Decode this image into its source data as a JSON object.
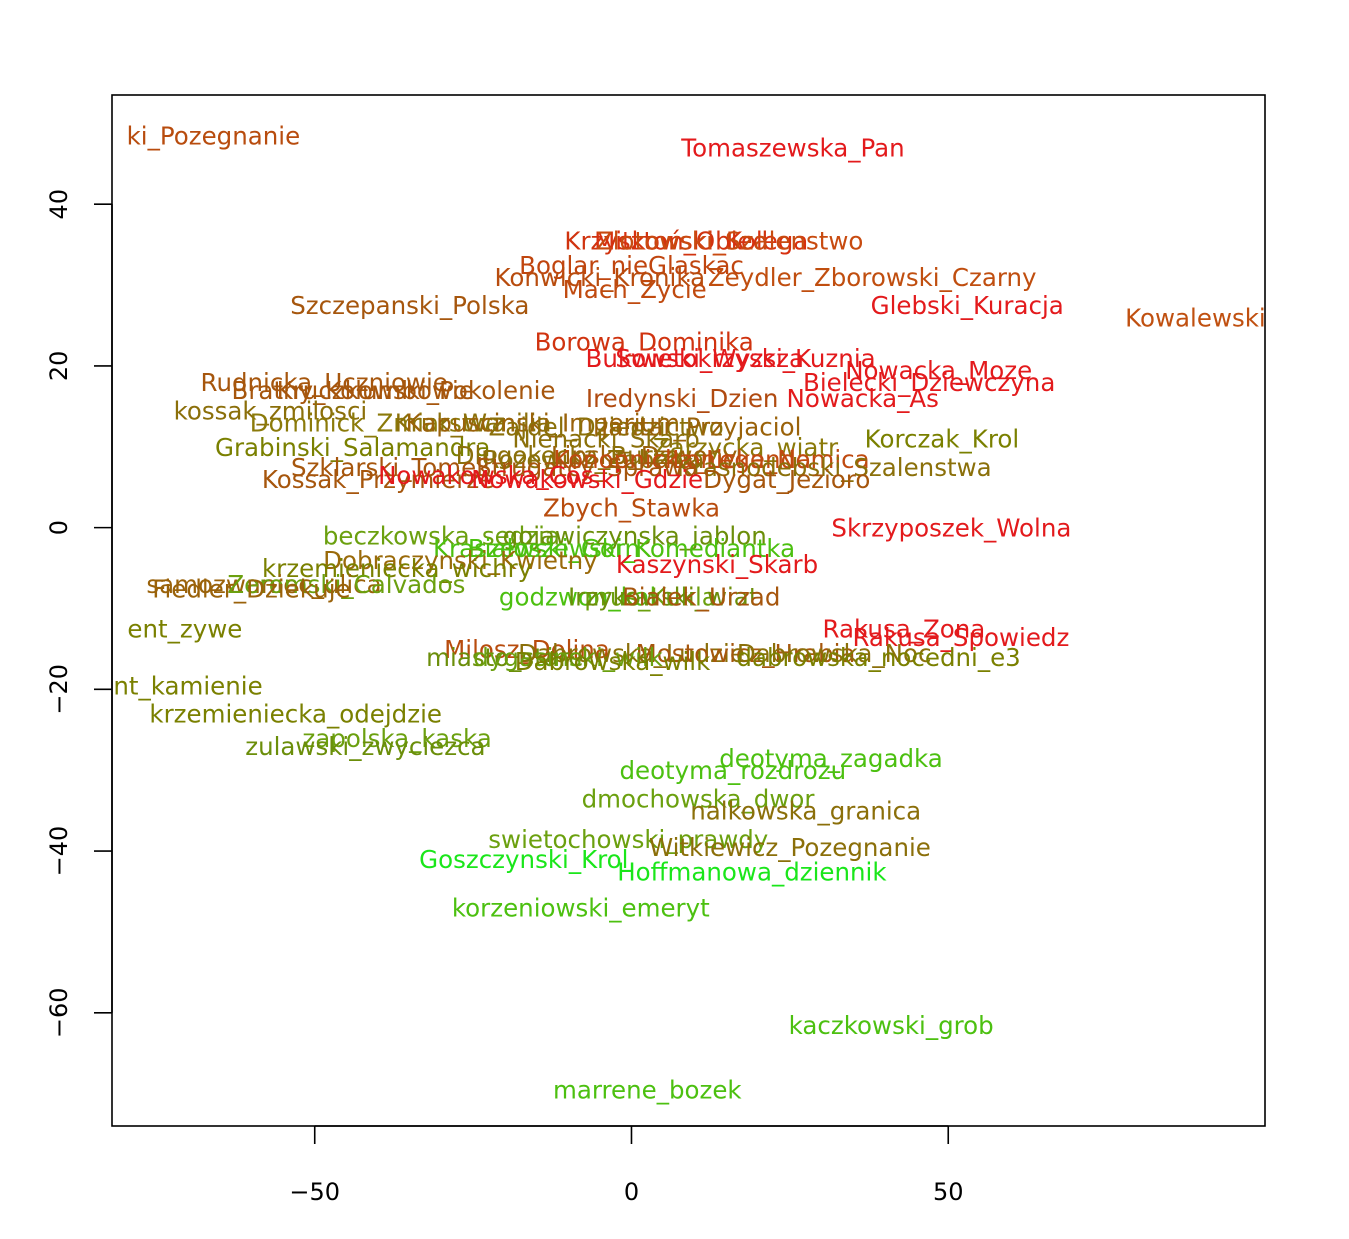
{
  "chart_data": {
    "type": "scatter",
    "title": "",
    "xlabel": "",
    "ylabel": "",
    "xlim": [
      -82,
      100
    ],
    "ylim": [
      -74,
      53.5
    ],
    "x_ticks": [
      -50,
      0,
      50
    ],
    "y_ticks": [
      -60,
      -40,
      -20,
      0,
      20,
      40
    ],
    "x_tick_labels": [
      "−50",
      "0",
      "50"
    ],
    "y_tick_labels": [
      "−60",
      "−40",
      "−20",
      "0",
      "20",
      "40"
    ],
    "grid": false,
    "marker": "text labels",
    "points": [
      {
        "label": "Tomaszewska_Pan",
        "x": 25.5,
        "y": 47.0,
        "color": "#E31A1C"
      },
      {
        "label": "Krzysztoń_Obled",
        "x": 5.5,
        "y": 35.5,
        "color": "#D0330F"
      },
      {
        "label": "Mitkowski_Kolega",
        "x": 11.0,
        "y": 35.5,
        "color": "#D7300F"
      },
      {
        "label": "Zlotowski_Szalenstwo",
        "x": 15.5,
        "y": 35.5,
        "color": "#C84B10"
      },
      {
        "label": "Boglar_nieGlaskac",
        "x": 0.0,
        "y": 32.5,
        "color": "#C0450E"
      },
      {
        "label": "Konwicki_Kronika",
        "x": -5.0,
        "y": 31.0,
        "color": "#B84C0E"
      },
      {
        "label": "Zeydler_Zborowski_Czarny",
        "x": 38.0,
        "y": 31.0,
        "color": "#C04E0F"
      },
      {
        "label": "Mach_Zycie",
        "x": 0.5,
        "y": 29.5,
        "color": "#C04A0F"
      },
      {
        "label": "Szczepanski_Polska",
        "x": -35.0,
        "y": 27.5,
        "color": "#A6560D"
      },
      {
        "label": "Glebski_Kuracja",
        "x": 53.0,
        "y": 27.5,
        "color": "#E31A1C"
      },
      {
        "label": "Kowalewski_",
        "x": 90.0,
        "y": 26.0,
        "color": "#C05010"
      },
      {
        "label": "Borowa_Dominika",
        "x": 2.0,
        "y": 23.0,
        "color": "#D0330F"
      },
      {
        "label": "Bukowski_Wyzsza",
        "x": 10.0,
        "y": 21.0,
        "color": "#E31A1C"
      },
      {
        "label": "Swietokrzyski_Kuznia",
        "x": 18.0,
        "y": 21.0,
        "color": "#E31A1C"
      },
      {
        "label": "Nowacka_Moze",
        "x": 48.5,
        "y": 19.5,
        "color": "#E31A1C"
      },
      {
        "label": "Bielecki_Dziewczyna",
        "x": 47.0,
        "y": 18.0,
        "color": "#E31A1C"
      },
      {
        "label": "Rudnicka_Uczniowie",
        "x": -48.5,
        "y": 18.0,
        "color": "#A6560D"
      },
      {
        "label": "Bratny_Kolumbowie",
        "x": -44.0,
        "y": 17.0,
        "color": "#A6560D"
      },
      {
        "label": "Kruczkowski_Pokolenie",
        "x": -34.0,
        "y": 17.0,
        "color": "#A6560D"
      },
      {
        "label": "Iredynski_Dzien",
        "x": 8.0,
        "y": 16.0,
        "color": "#B04A10"
      },
      {
        "label": "Nowacka_As",
        "x": 36.5,
        "y": 16.0,
        "color": "#E31A1C"
      },
      {
        "label": "kossak_zmilosci",
        "x": -57.0,
        "y": 14.5,
        "color": "#8B6F0A"
      },
      {
        "label": "Dominick_Zmiarstwa",
        "x": -40.0,
        "y": 13.0,
        "color": "#8B7A0A"
      },
      {
        "label": "Kruk_Wanilia",
        "x": -25.0,
        "y": 13.0,
        "color": "#8B700A"
      },
      {
        "label": "Kapuscinski_Imperium",
        "x": -14.0,
        "y": 13.0,
        "color": "#9A620A"
      },
      {
        "label": "Zajdel_Dziedzictwo",
        "x": -4.0,
        "y": 12.5,
        "color": "#8B700A"
      },
      {
        "label": "Jantar_Przyjaciol",
        "x": 11.0,
        "y": 12.5,
        "color": "#9A620A"
      },
      {
        "label": "Nienacki_Skarb",
        "x": -4.0,
        "y": 11.0,
        "color": "#8B700A"
      },
      {
        "label": "Korczak_Krol",
        "x": 49.0,
        "y": 11.0,
        "color": "#7A8000"
      },
      {
        "label": "Grabinski_Salamandra",
        "x": -44.0,
        "y": 10.0,
        "color": "#7A8000"
      },
      {
        "label": "Zarzycka_wiatr",
        "x": 18.0,
        "y": 10.0,
        "color": "#8B7A0A"
      },
      {
        "label": "Dlugokecka_Burza",
        "x": -10.0,
        "y": 9.0,
        "color": "#8B700A"
      },
      {
        "label": "Lipska_Dzwony",
        "x": 2.0,
        "y": 9.0,
        "color": "#9A620A"
      },
      {
        "label": "Rozewicz_Zabawa",
        "x": -6.0,
        "y": 8.5,
        "color": "#8B700A"
      },
      {
        "label": "Lonicka_Nomica",
        "x": 22.0,
        "y": 8.5,
        "color": "#C04A10"
      },
      {
        "label": "Konopnicka_Legenda",
        "x": 8.0,
        "y": 8.5,
        "color": "#C04A10"
      },
      {
        "label": "Szklarski_Tomek",
        "x": -38.0,
        "y": 7.5,
        "color": "#A6560D"
      },
      {
        "label": "Krasnodebski_Szalenstwa",
        "x": 32.0,
        "y": 7.5,
        "color": "#8B700A"
      },
      {
        "label": "Strugatcy_Sprawa",
        "x": -7.0,
        "y": 7.5,
        "color": "#A6560D"
      },
      {
        "label": "Kossak_Przymierze",
        "x": -40.0,
        "y": 6.0,
        "color": "#A6560D"
      },
      {
        "label": "Nowakowski_Gdzie",
        "x": -7.0,
        "y": 6.0,
        "color": "#E31A1C"
      },
      {
        "label": "Nowakowska_Cos",
        "x": -23.0,
        "y": 6.5,
        "color": "#E31A1C"
      },
      {
        "label": "Dygat_Jezioro",
        "x": 24.5,
        "y": 6.0,
        "color": "#A6560D"
      },
      {
        "label": "Zbych_Stawka",
        "x": 0.0,
        "y": 2.5,
        "color": "#B84C0E"
      },
      {
        "label": "Skrzyposzek_Wolna",
        "x": 50.5,
        "y": 0.0,
        "color": "#E31A1C"
      },
      {
        "label": "beczkowska_sedzia",
        "x": -30.0,
        "y": -1.0,
        "color": "#6BA00F"
      },
      {
        "label": "gojawiczynska_jablon",
        "x": 0.5,
        "y": -1.0,
        "color": "#6B8E0A"
      },
      {
        "label": "Kraszewski_Gorn",
        "x": -15.0,
        "y": -2.5,
        "color": "#4CC010"
      },
      {
        "label": "Bialoszewski_Komediantka",
        "x": 0.0,
        "y": -2.5,
        "color": "#4CC010"
      },
      {
        "label": "Dobraczynski_Kwietny",
        "x": -27.0,
        "y": -4.0,
        "color": "#9A6A0A"
      },
      {
        "label": "krzemieniecka_wichry",
        "x": -37.0,
        "y": -5.0,
        "color": "#7A8000"
      },
      {
        "label": "Kaszynski_Skarb",
        "x": 13.5,
        "y": -4.5,
        "color": "#E31A1C"
      },
      {
        "label": "samozwaniec_ulica",
        "x": -58.0,
        "y": -7.0,
        "color": "#9A620A"
      },
      {
        "label": "Zeromski_Calvados",
        "x": -45.0,
        "y": -7.0,
        "color": "#6BA00F"
      },
      {
        "label": "Fiedler_Dziekuje",
        "x": -60.0,
        "y": -7.5,
        "color": "#9A620A"
      },
      {
        "label": "godzwon_kal",
        "x": -8.5,
        "y": -8.5,
        "color": "#4CC010"
      },
      {
        "label": "prus_Kukla",
        "x": 3.0,
        "y": -8.5,
        "color": "#6BA00F"
      },
      {
        "label": "Irzykowski_wiat",
        "x": 5.0,
        "y": -8.5,
        "color": "#6B8E0A"
      },
      {
        "label": "Bialek_Urzad",
        "x": 11.0,
        "y": -8.5,
        "color": "#A6560D"
      },
      {
        "label": "ent_zywe",
        "x": -70.5,
        "y": -12.5,
        "color": "#7A8000"
      },
      {
        "label": "Rakusa_Zona",
        "x": 43.0,
        "y": -12.5,
        "color": "#E31A1C"
      },
      {
        "label": "Rakusa_Spowiedz",
        "x": 52.0,
        "y": -13.5,
        "color": "#E31A1C"
      },
      {
        "label": "Milosz_Dolina",
        "x": -16.5,
        "y": -15.0,
        "color": "#B84C0E"
      },
      {
        "label": "Dabrowska_Ludzie",
        "x": 0.0,
        "y": -15.5,
        "color": "#8B6F0A"
      },
      {
        "label": "Mostowicz_Hrabia",
        "x": 18.0,
        "y": -15.5,
        "color": "#A6560D"
      },
      {
        "label": "Dabrowska_Noc",
        "x": 32.0,
        "y": -15.5,
        "color": "#8B700A"
      },
      {
        "label": "dabrowska_nocedni_e3",
        "x": 39.0,
        "y": -16.0,
        "color": "#7A8000"
      },
      {
        "label": "miasto_stare",
        "x": -20.0,
        "y": -16.0,
        "color": "#6B8E0A"
      },
      {
        "label": "dygasinski_wilk",
        "x": -10.0,
        "y": -16.0,
        "color": "#6BA00F"
      },
      {
        "label": "Dabrowska_wilk",
        "x": -3.0,
        "y": -16.5,
        "color": "#7A8000"
      },
      {
        "label": "nt_kamienie",
        "x": -70.0,
        "y": -19.5,
        "color": "#7A8000"
      },
      {
        "label": "krzemieniecka_odejdzie",
        "x": -53.0,
        "y": -23.0,
        "color": "#7A8000"
      },
      {
        "label": "zapolska_kaska",
        "x": -37.0,
        "y": -26.0,
        "color": "#6BA00F"
      },
      {
        "label": "zulawski_zwyciezca",
        "x": -42.0,
        "y": -27.0,
        "color": "#6B8E0A"
      },
      {
        "label": "deotyma_zagadka",
        "x": 31.5,
        "y": -28.5,
        "color": "#4CC010"
      },
      {
        "label": "deotyma_rozdrozu",
        "x": 16.0,
        "y": -30.0,
        "color": "#4CC010"
      },
      {
        "label": "dmochowska_dwor",
        "x": 10.5,
        "y": -33.5,
        "color": "#6BA00F"
      },
      {
        "label": "nalkowska_granica",
        "x": 27.5,
        "y": -35.0,
        "color": "#8B6F0A"
      },
      {
        "label": "swietochowski_prawdy",
        "x": -0.5,
        "y": -38.5,
        "color": "#6BA00F"
      },
      {
        "label": "Witkiewicz_Pozegnanie",
        "x": 25.0,
        "y": -39.5,
        "color": "#8B6F0A"
      },
      {
        "label": "Goszczynski_Krol",
        "x": -17.0,
        "y": -41.0,
        "color": "#1AE61A"
      },
      {
        "label": "Hoffmanowa_dziennik",
        "x": 19.0,
        "y": -42.5,
        "color": "#1AE61A"
      },
      {
        "label": "korzeniowski_emeryt",
        "x": -8.0,
        "y": -47.0,
        "color": "#4CC010"
      },
      {
        "label": "kaczkowski_grob",
        "x": 41.0,
        "y": -61.5,
        "color": "#4CC010"
      },
      {
        "label": "marrene_bozek",
        "x": 2.5,
        "y": -69.5,
        "color": "#4CC010"
      },
      {
        "label": "ki_Pozegnanie",
        "x": -66.0,
        "y": 48.5,
        "color": "#B84C0E"
      }
    ]
  }
}
